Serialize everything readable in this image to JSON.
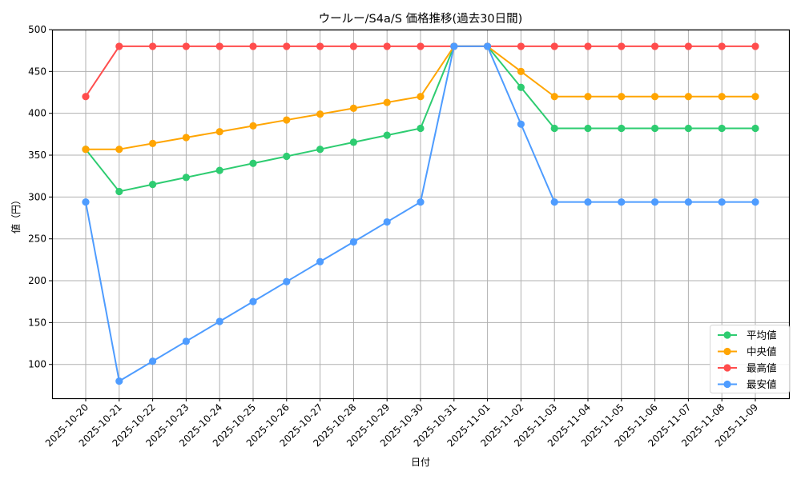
{
  "chart_data": {
    "type": "line",
    "title": "ウールー/S4a/S 価格推移(過去30日間)",
    "xlabel": "日付",
    "ylabel": "値（円）",
    "ylim": [
      60,
      500
    ],
    "yticks": [
      100,
      150,
      200,
      250,
      300,
      350,
      400,
      450,
      500
    ],
    "grid": true,
    "legend_position": "lower right",
    "categories": [
      "2025-10-20",
      "2025-10-21",
      "2025-10-22",
      "2025-10-23",
      "2025-10-24",
      "2025-10-25",
      "2025-10-26",
      "2025-10-27",
      "2025-10-28",
      "2025-10-29",
      "2025-10-30",
      "2025-10-31",
      "2025-11-01",
      "2025-11-02",
      "2025-11-03",
      "2025-11-04",
      "2025-11-05",
      "2025-11-06",
      "2025-11-07",
      "2025-11-08",
      "2025-11-09"
    ],
    "series": [
      {
        "name": "平均値",
        "color": "#2ecc71",
        "values": [
          357,
          306.6,
          315,
          323.4,
          331.8,
          340.2,
          348.6,
          357,
          365.4,
          373.8,
          382,
          480,
          480,
          431,
          382,
          382,
          382,
          382,
          382,
          382,
          382
        ]
      },
      {
        "name": "中央値",
        "color": "#ffa502",
        "values": [
          357,
          357,
          364,
          371,
          378,
          385,
          392,
          399,
          406,
          413,
          420,
          480,
          480,
          450,
          420,
          420,
          420,
          420,
          420,
          420,
          420
        ]
      },
      {
        "name": "最高値",
        "color": "#ff4d4d",
        "values": [
          420,
          480,
          480,
          480,
          480,
          480,
          480,
          480,
          480,
          480,
          480,
          480,
          480,
          480,
          480,
          480,
          480,
          480,
          480,
          480,
          480
        ]
      },
      {
        "name": "最安値",
        "color": "#4e9cff",
        "values": [
          294,
          80,
          103.8,
          127.6,
          151.3,
          175.1,
          198.9,
          222.7,
          246.4,
          270.2,
          294,
          480,
          480,
          387,
          294,
          294,
          294,
          294,
          294,
          294,
          294
        ]
      }
    ]
  }
}
